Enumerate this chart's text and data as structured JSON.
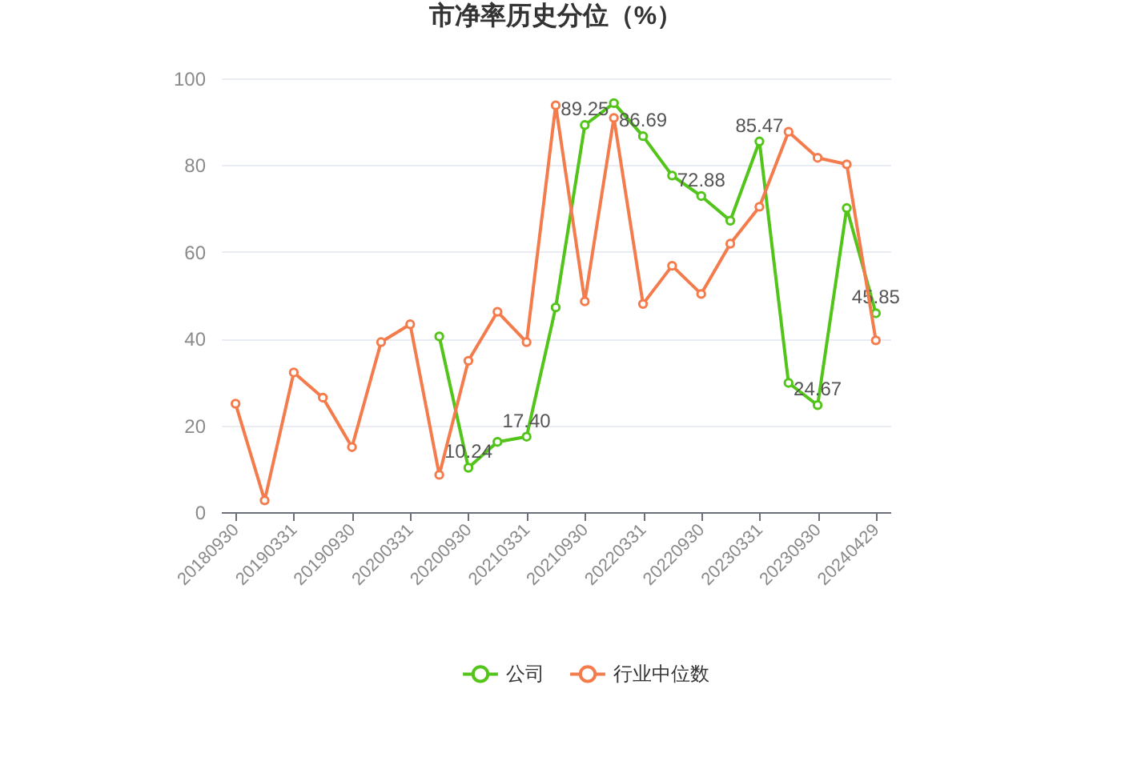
{
  "chart_data": {
    "type": "line",
    "title": "市净率历史分位（%）",
    "categories": [
      "20180930",
      null,
      "20190331",
      null,
      "20190930",
      null,
      "20200331",
      null,
      "20200930",
      null,
      "20210331",
      null,
      "20210930",
      null,
      "20220331",
      null,
      "20220930",
      null,
      "20230331",
      null,
      "20230930",
      null,
      "20240429"
    ],
    "series": [
      {
        "name": "公司",
        "color": "#52c41a",
        "values": [
          null,
          null,
          null,
          null,
          null,
          null,
          null,
          40.5,
          10.24,
          16.2,
          17.4,
          47.2,
          89.25,
          94.3,
          86.69,
          77.6,
          72.88,
          67.2,
          85.47,
          29.8,
          24.67,
          70.1,
          45.85
        ],
        "value_labels": [
          null,
          null,
          null,
          null,
          null,
          null,
          null,
          null,
          "10.24",
          null,
          "17.40",
          null,
          "89.25",
          null,
          "86.69",
          null,
          "72.88",
          null,
          "85.47",
          null,
          "24.67",
          null,
          "45.85"
        ]
      },
      {
        "name": "行业中位数",
        "color": "#f47c4c",
        "values": [
          25,
          2.7,
          32.2,
          26.4,
          15,
          39.2,
          43.3,
          8.6,
          34.9,
          46.2,
          39.2,
          93.8,
          48.6,
          90.9,
          48,
          56.8,
          50.3,
          61.9,
          70.4,
          87.7,
          81.7,
          80.2,
          39.6
        ]
      }
    ],
    "ylim": [
      0,
      100
    ],
    "yticks": [
      0,
      20,
      40,
      60,
      80,
      100
    ],
    "grid": "y",
    "legend": "bottom",
    "marker": "circle",
    "line_style": "solid"
  }
}
